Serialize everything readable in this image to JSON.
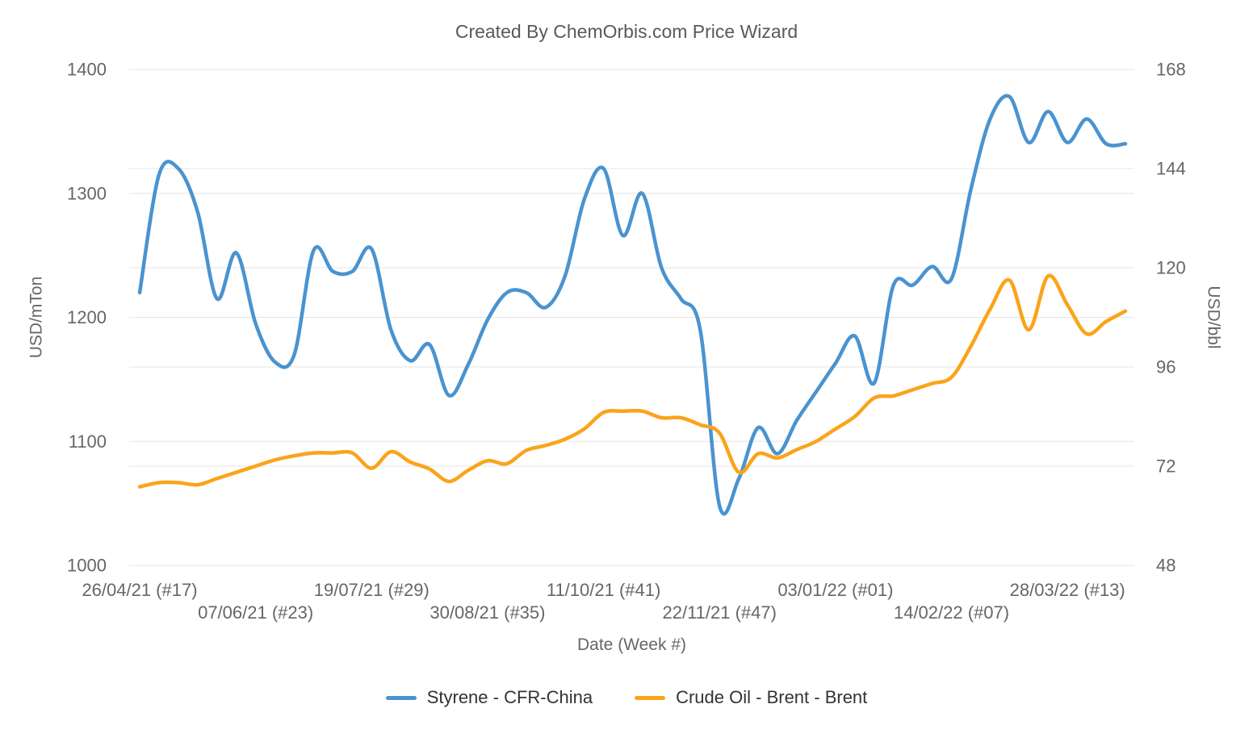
{
  "title": "Created By ChemOrbis.com Price Wizard",
  "colors": {
    "styrene_line": "#4A93D0",
    "brent_line": "#FAA41B",
    "grid": "#E6E6E6",
    "axis_text": "#666666",
    "title_text": "#595959",
    "legend_text": "#333333"
  },
  "chart_data": {
    "type": "line",
    "title": "Created By ChemOrbis.com Price Wizard",
    "grid": true,
    "legend_position": "bottom",
    "x_axis": {
      "title": "Date (Week #)",
      "tick_labels": [
        "26/04/21 (#17)",
        "07/06/21 (#23)",
        "19/07/21 (#29)",
        "30/08/21 (#35)",
        "11/10/21 (#41)",
        "22/11/21 (#47)",
        "03/01/22 (#01)",
        "14/02/22 (#07)",
        "28/03/22 (#13)"
      ],
      "tick_point_indices": [
        0,
        6,
        12,
        18,
        24,
        30,
        36,
        42,
        48
      ]
    },
    "left_axis": {
      "title": "USD/mTon",
      "ticks": [
        1400,
        1300,
        1200,
        1100,
        1000
      ],
      "min": 1000,
      "max": 1400
    },
    "right_axis": {
      "title": "USD/bbl",
      "ticks": [
        168,
        144,
        120,
        96,
        72,
        48
      ],
      "min": 48,
      "max": 168
    },
    "weeks": [
      "2021-W17",
      "2021-W18",
      "2021-W19",
      "2021-W20",
      "2021-W21",
      "2021-W22",
      "2021-W23",
      "2021-W24",
      "2021-W25",
      "2021-W26",
      "2021-W27",
      "2021-W28",
      "2021-W29",
      "2021-W30",
      "2021-W31",
      "2021-W32",
      "2021-W33",
      "2021-W34",
      "2021-W35",
      "2021-W36",
      "2021-W37",
      "2021-W38",
      "2021-W39",
      "2021-W40",
      "2021-W41",
      "2021-W42",
      "2021-W43",
      "2021-W44",
      "2021-W45",
      "2021-W46",
      "2021-W47",
      "2021-W48",
      "2021-W49",
      "2021-W50",
      "2021-W51",
      "2021-W52",
      "2022-W01",
      "2022-W02",
      "2022-W03",
      "2022-W04",
      "2022-W05",
      "2022-W06",
      "2022-W07",
      "2022-W08",
      "2022-W09",
      "2022-W10",
      "2022-W11",
      "2022-W12",
      "2022-W13",
      "2022-W14",
      "2022-W15",
      "2022-W16"
    ],
    "series": [
      {
        "name": "Styrene - CFR-China",
        "axis": "left",
        "unit": "USD/mTon",
        "color": "#4A93D0",
        "values": [
          1220,
          1315,
          1320,
          1285,
          1215,
          1252,
          1195,
          1164,
          1170,
          1254,
          1237,
          1237,
          1255,
          1190,
          1165,
          1178,
          1137,
          1162,
          1198,
          1220,
          1220,
          1208,
          1233,
          1295,
          1320,
          1266,
          1300,
          1240,
          1215,
          1190,
          1048,
          1070,
          1111,
          1090,
          1117,
          1140,
          1163,
          1185,
          1147,
          1226,
          1226,
          1241,
          1231,
          1303,
          1360,
          1378,
          1341,
          1366,
          1341,
          1360,
          1340,
          1340
        ]
      },
      {
        "name": "Crude Oil - Brent - Brent",
        "axis": "right",
        "unit": "USD/bbl",
        "color": "#FAA41B",
        "values": [
          67,
          68,
          68,
          67.5,
          69,
          70.5,
          72,
          73.5,
          74.5,
          75.2,
          75.2,
          75.2,
          71.5,
          75.5,
          73,
          71.3,
          68.3,
          71,
          73.3,
          72.6,
          75.8,
          77,
          78.5,
          81,
          85,
          85.3,
          85.3,
          83.7,
          83.7,
          82,
          80,
          70.5,
          75,
          74,
          76,
          78,
          81,
          84,
          88.5,
          89,
          90.5,
          92,
          93.5,
          101,
          110,
          117,
          105,
          118,
          111,
          104,
          107,
          109.5
        ]
      }
    ]
  }
}
